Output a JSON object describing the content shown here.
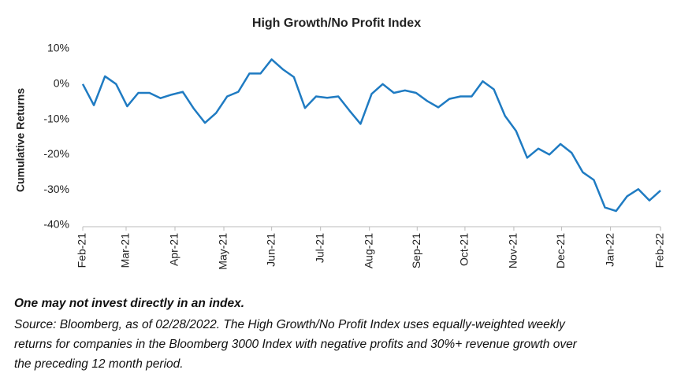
{
  "chart_data": {
    "type": "line",
    "title": "High Growth/No Profit Index",
    "ylabel": "Cumulative Returns",
    "series": [
      {
        "name": "High Growth/No Profit Index",
        "color": "#1f7bc2",
        "values": [
          0,
          -6,
          2.2,
          0,
          -6.3,
          -2.5,
          -2.5,
          -4,
          -3,
          -2.2,
          -7,
          -11,
          -8.2,
          -3.5,
          -2.2,
          3,
          3,
          7,
          4.2,
          2,
          -6.8,
          -3.5,
          -3.9,
          -3.5,
          -7.5,
          -11.3,
          -2.8,
          0,
          -2.5,
          -1.8,
          -2.5,
          -4.8,
          -6.6,
          -4.2,
          -3.5,
          -3.5,
          0.8,
          -1.5,
          -9,
          -13.3,
          -20.9,
          -18.3,
          -20,
          -17,
          -19.5,
          -25,
          -27.2,
          -35,
          -36,
          -31.8,
          -29.8,
          -33,
          -30.2
        ]
      }
    ],
    "xlim": [
      0,
      52
    ],
    "xticks": [
      {
        "value": 0,
        "label": "Feb-21"
      },
      {
        "value": 3.9,
        "label": "Mar-21"
      },
      {
        "value": 8.3,
        "label": "Apr-21"
      },
      {
        "value": 12.7,
        "label": "May-21"
      },
      {
        "value": 17,
        "label": "Jun-21"
      },
      {
        "value": 21.4,
        "label": "Jul-21"
      },
      {
        "value": 25.8,
        "label": "Aug-21"
      },
      {
        "value": 30.1,
        "label": "Sep-21"
      },
      {
        "value": 34.4,
        "label": "Oct-21"
      },
      {
        "value": 38.8,
        "label": "Nov-21"
      },
      {
        "value": 43.1,
        "label": "Dec-21"
      },
      {
        "value": 47.5,
        "label": "Jan-22"
      },
      {
        "value": 52,
        "label": "Feb-22"
      }
    ],
    "ylim": [
      -40,
      10
    ],
    "yticks": [
      {
        "value": 10,
        "label": "10%"
      },
      {
        "value": 0,
        "label": "0%"
      },
      {
        "value": -10,
        "label": "-10%"
      },
      {
        "value": -20,
        "label": "-20%"
      },
      {
        "value": -30,
        "label": "-30%"
      },
      {
        "value": -40,
        "label": "-40%"
      }
    ],
    "grid": false,
    "notes": [
      "One may not invest directly in an index.",
      "Source: Bloomberg, as of 02/28/2022. The High Growth/No Profit Index uses equally-weighted weekly",
      "returns for companies in the Bloomberg 3000 Index with negative profits and 30%+ revenue growth over",
      "the preceding 12 month period."
    ]
  }
}
